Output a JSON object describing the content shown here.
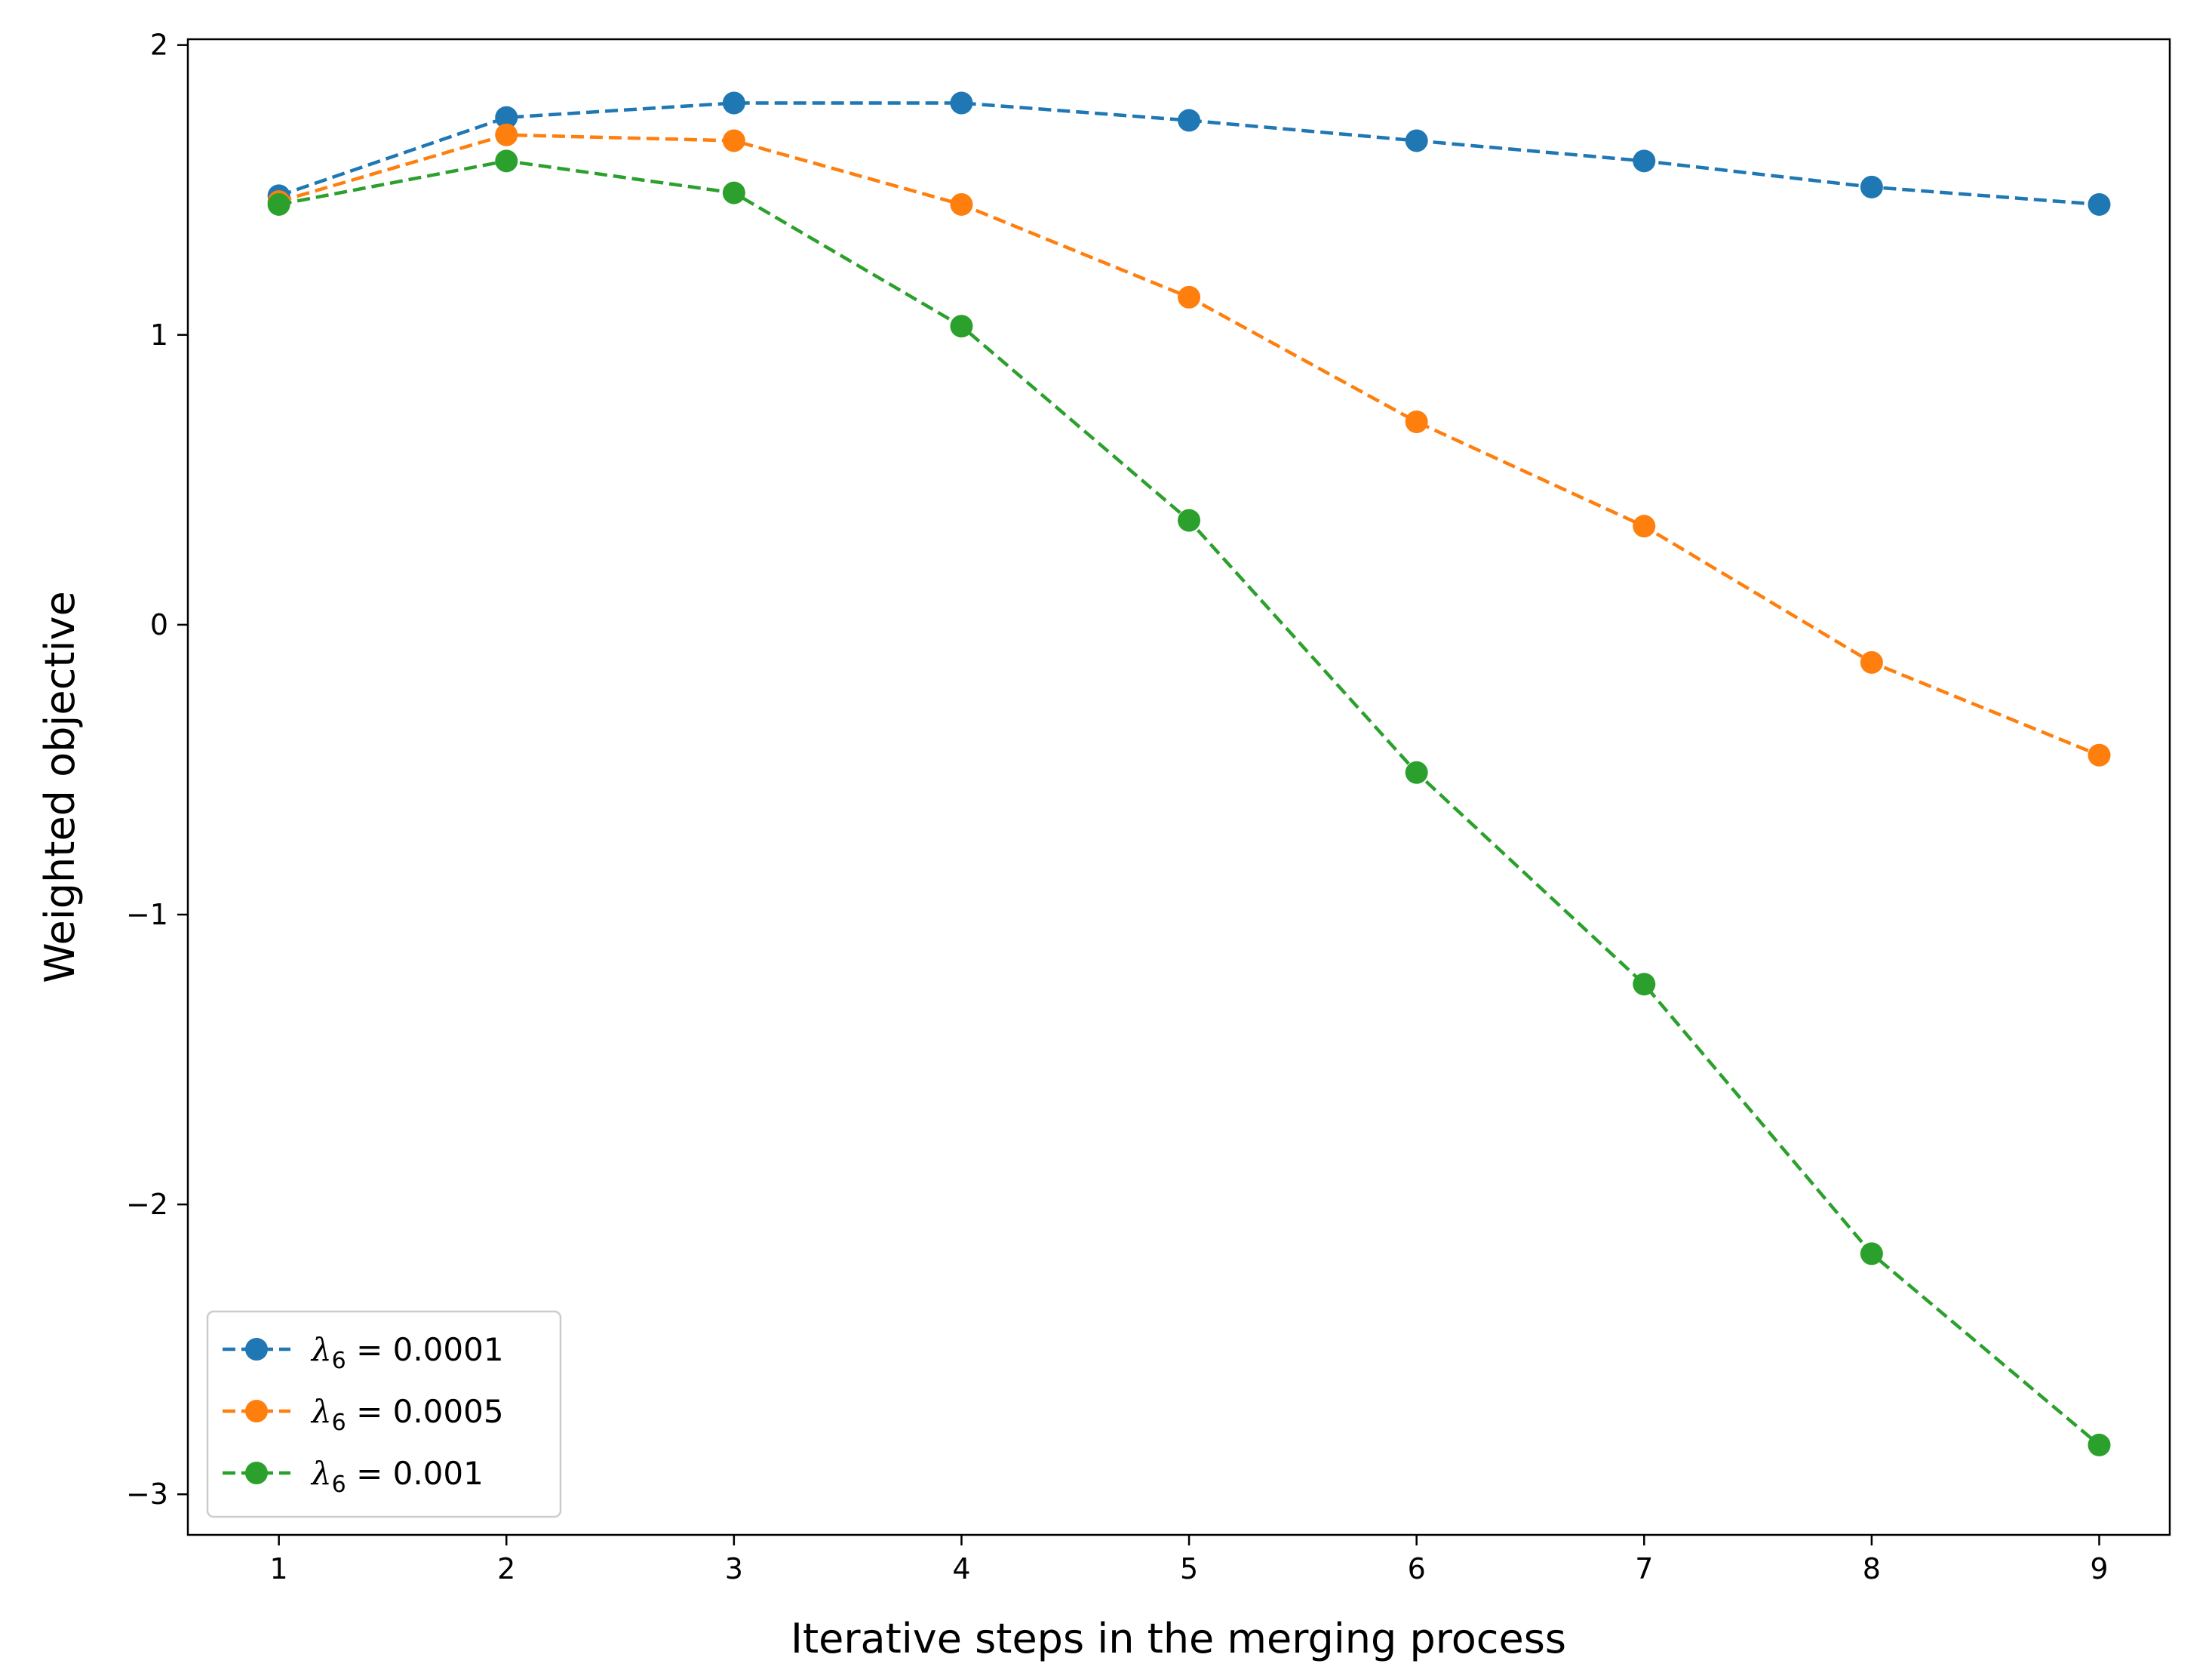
{
  "chart_data": {
    "type": "line",
    "title": "",
    "xlabel": "Iterative steps in the merging process",
    "ylabel": "Weighted objective",
    "x": [
      1,
      2,
      3,
      4,
      5,
      6,
      7,
      8,
      9
    ],
    "xlim": [
      0.6,
      9.31
    ],
    "ylim": [
      -3.14,
      2.02
    ],
    "x_ticks": [
      1,
      2,
      3,
      4,
      5,
      6,
      7,
      8,
      9
    ],
    "x_tick_labels": [
      "1",
      "2",
      "3",
      "4",
      "5",
      "6",
      "7",
      "8",
      "9"
    ],
    "y_ticks": [
      2,
      1,
      0,
      -1,
      -2,
      -3
    ],
    "y_tick_labels": [
      "2",
      "1",
      "0",
      "−1",
      "−2",
      "−3"
    ],
    "grid": false,
    "legend_position": "lower-left",
    "series": [
      {
        "name": "λ6 = 0.0001",
        "legend_symbol": "λ",
        "legend_subscript": "6",
        "legend_value": " = 0.0001",
        "color": "#1f77b4",
        "line_style": "dashed",
        "marker": "circle",
        "values": [
          1.48,
          1.75,
          1.8,
          1.8,
          1.74,
          1.67,
          1.6,
          1.51,
          1.45
        ]
      },
      {
        "name": "λ6 = 0.0005",
        "legend_symbol": "λ",
        "legend_subscript": "6",
        "legend_value": " = 0.0005",
        "color": "#ff7f0e",
        "line_style": "dashed",
        "marker": "circle",
        "values": [
          1.46,
          1.69,
          1.67,
          1.45,
          1.13,
          0.7,
          0.34,
          -0.13,
          -0.45
        ]
      },
      {
        "name": "λ6 = 0.001",
        "legend_symbol": "λ",
        "legend_subscript": "6",
        "legend_value": " = 0.001",
        "color": "#2ca02c",
        "line_style": "dashed",
        "marker": "circle",
        "values": [
          1.45,
          1.6,
          1.49,
          1.03,
          0.36,
          -0.51,
          -1.24,
          -2.17,
          -2.83
        ]
      }
    ]
  }
}
